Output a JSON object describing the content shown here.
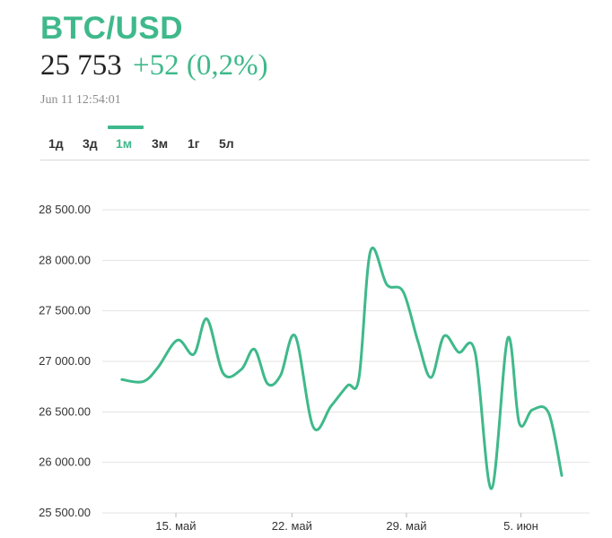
{
  "header": {
    "ticker": "BTC/USD",
    "price": "25 753",
    "change": "+52 (0,2%)",
    "timestamp": "Jun 11 12:54:01"
  },
  "tabs": [
    {
      "label": "1д",
      "active": false
    },
    {
      "label": "3д",
      "active": false
    },
    {
      "label": "1м",
      "active": true
    },
    {
      "label": "3м",
      "active": false
    },
    {
      "label": "1г",
      "active": false
    },
    {
      "label": "5л",
      "active": false
    }
  ],
  "colors": {
    "accent": "#3fb98b",
    "grid": "#e3e3e3",
    "text": "#333333"
  },
  "chart_data": {
    "type": "line",
    "x_tick_labels": [
      "15. май",
      "22. май",
      "29. май",
      "5. июн"
    ],
    "y_tick_labels": [
      "28 500.00",
      "28 000.00",
      "27 500.00",
      "27 000.00",
      "26 500.00",
      "26 000.00",
      "25 500.00"
    ],
    "y_ticks": [
      28500,
      28000,
      27500,
      27000,
      26500,
      26000,
      25500
    ],
    "ylim": [
      25500,
      28500
    ],
    "x_range_days": [
      -1.2,
      28.6
    ],
    "x_tick_days": [
      3.3,
      10.4,
      17.4,
      24.4
    ],
    "grid": true,
    "series": [
      {
        "points": [
          [
            0.0,
            26820
          ],
          [
            1.3,
            26800
          ],
          [
            2.2,
            26940
          ],
          [
            3.4,
            27210
          ],
          [
            4.4,
            27070
          ],
          [
            5.2,
            27420
          ],
          [
            6.2,
            26880
          ],
          [
            7.3,
            26920
          ],
          [
            8.1,
            27120
          ],
          [
            8.9,
            26780
          ],
          [
            9.7,
            26860
          ],
          [
            10.6,
            27250
          ],
          [
            11.7,
            26350
          ],
          [
            12.8,
            26560
          ],
          [
            13.8,
            26760
          ],
          [
            14.5,
            26840
          ],
          [
            15.2,
            28090
          ],
          [
            16.2,
            27760
          ],
          [
            17.2,
            27690
          ],
          [
            18.1,
            27200
          ],
          [
            18.9,
            26840
          ],
          [
            19.7,
            27250
          ],
          [
            20.6,
            27090
          ],
          [
            21.6,
            27090
          ],
          [
            22.6,
            25740
          ],
          [
            23.6,
            27230
          ],
          [
            24.3,
            26390
          ],
          [
            25.1,
            26520
          ],
          [
            26.1,
            26490
          ],
          [
            26.9,
            25870
          ]
        ]
      }
    ]
  }
}
